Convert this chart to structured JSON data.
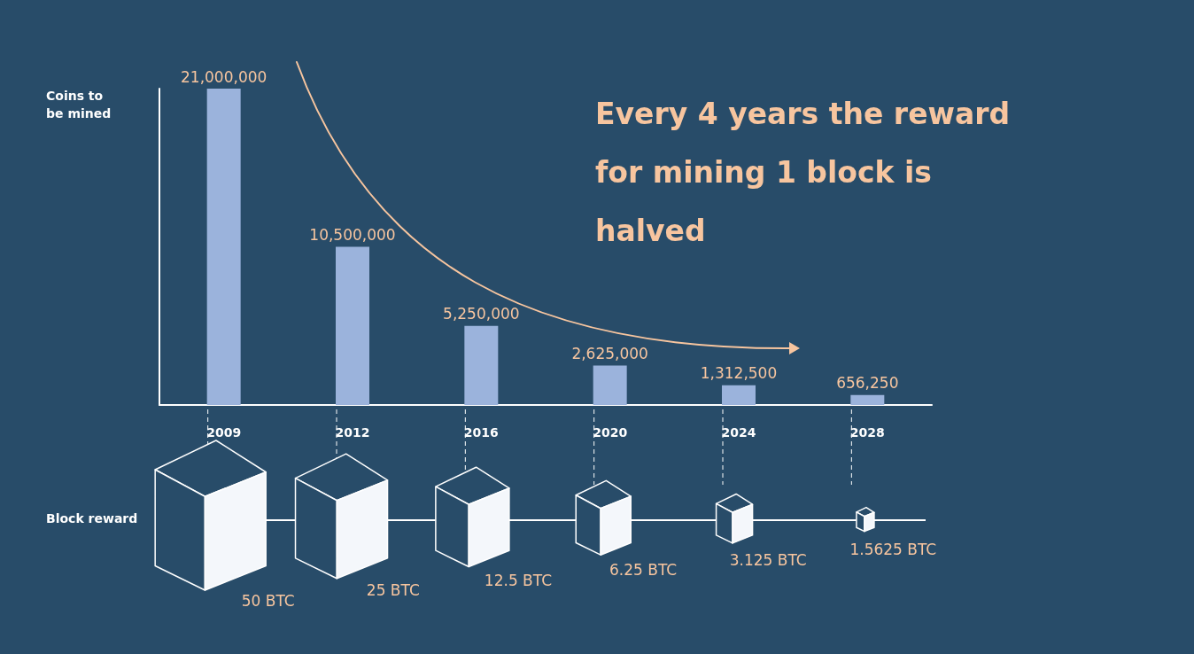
{
  "chart_data": {
    "type": "bar",
    "title": "Every 4 years the reward for mining 1 block is halved",
    "ylabel": "Coins to be mined",
    "categories": [
      "2009",
      "2012",
      "2016",
      "2020",
      "2024",
      "2028"
    ],
    "values": [
      21000000,
      10500000,
      5250000,
      2625000,
      1312500,
      656250
    ],
    "color": "#9bb3dc",
    "value_labels": [
      "21,000,000",
      "10,500,000",
      "5,250,000",
      "2,625,000",
      "1,312,500",
      "656,250"
    ],
    "annotations": [
      "Block reward",
      "50 BTC",
      "25 BTC",
      "12.5 BTC",
      "6.25 BTC",
      "3.125 BTC",
      "1.5625 BTC"
    ]
  }
}
